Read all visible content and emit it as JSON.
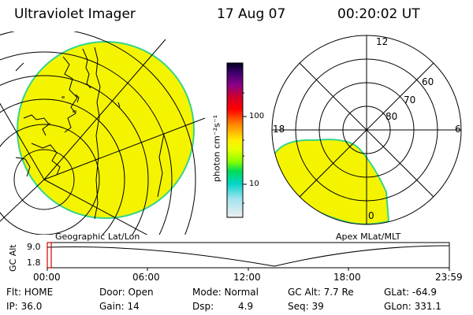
{
  "header": {
    "instrument": "Ultraviolet Imager",
    "date": "17 Aug 07",
    "time": "00:20:02 UT"
  },
  "colorbar": {
    "unit_label": "photon cm⁻²s⁻¹",
    "ticks": [
      "100",
      "10"
    ]
  },
  "left_panel": {
    "caption": "Geographic Lat/Lon"
  },
  "right_panel": {
    "caption": "Apex MLat/MLT",
    "mlt_labels": {
      "top": "12",
      "left": "18",
      "right": "6",
      "bottom": "0"
    },
    "lat_labels": [
      "60",
      "70",
      "80"
    ]
  },
  "timeline": {
    "y_axis_label": "GC Alt",
    "y_ticks": [
      "9.0",
      "1.8"
    ],
    "x_ticks": [
      "00:00",
      "06:00",
      "12:00",
      "18:00",
      "23:59"
    ]
  },
  "footer": {
    "flt": "Flt: HOME",
    "ip": "IP: 36.0",
    "door": "Door: Open",
    "gain": "Gain: 14",
    "mode": "Mode: Normal",
    "dsp_label": "Dsp:",
    "dsp_value": "4.9",
    "gc_alt": "GC Alt: 7.7 Re",
    "seq": "Seq: 39",
    "glat": "GLat: -64.9",
    "glon": "GLon: 331.1"
  },
  "colors": {
    "image_fill": "#f4f400",
    "image_edge": "#36d48a",
    "marker": "#d40000"
  }
}
